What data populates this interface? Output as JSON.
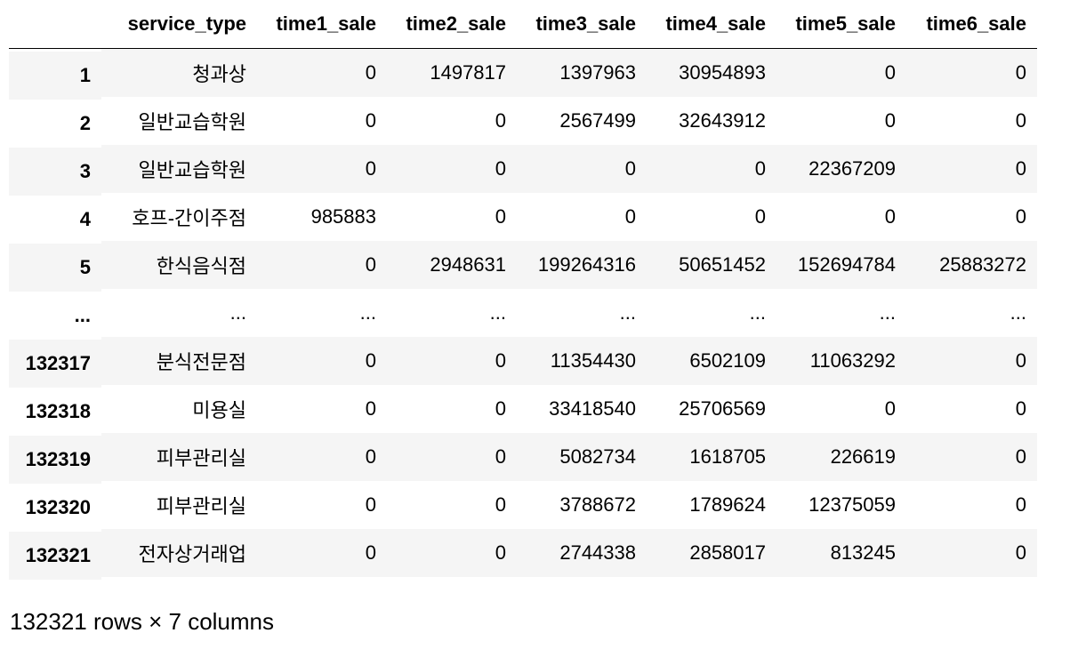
{
  "table": {
    "columns": [
      "service_type",
      "time1_sale",
      "time2_sale",
      "time3_sale",
      "time4_sale",
      "time5_sale",
      "time6_sale"
    ],
    "rows": [
      {
        "index": "1",
        "cells": [
          "청과상",
          "0",
          "1497817",
          "1397963",
          "30954893",
          "0",
          "0"
        ]
      },
      {
        "index": "2",
        "cells": [
          "일반교습학원",
          "0",
          "0",
          "2567499",
          "32643912",
          "0",
          "0"
        ]
      },
      {
        "index": "3",
        "cells": [
          "일반교습학원",
          "0",
          "0",
          "0",
          "0",
          "22367209",
          "0"
        ]
      },
      {
        "index": "4",
        "cells": [
          "호프-간이주점",
          "985883",
          "0",
          "0",
          "0",
          "0",
          "0"
        ]
      },
      {
        "index": "5",
        "cells": [
          "한식음식점",
          "0",
          "2948631",
          "199264316",
          "50651452",
          "152694784",
          "25883272"
        ]
      },
      {
        "index": "...",
        "cells": [
          "...",
          "...",
          "...",
          "...",
          "...",
          "...",
          "..."
        ]
      },
      {
        "index": "132317",
        "cells": [
          "분식전문점",
          "0",
          "0",
          "11354430",
          "6502109",
          "11063292",
          "0"
        ]
      },
      {
        "index": "132318",
        "cells": [
          "미용실",
          "0",
          "0",
          "33418540",
          "25706569",
          "0",
          "0"
        ]
      },
      {
        "index": "132319",
        "cells": [
          "피부관리실",
          "0",
          "0",
          "5082734",
          "1618705",
          "226619",
          "0"
        ]
      },
      {
        "index": "132320",
        "cells": [
          "피부관리실",
          "0",
          "0",
          "3788672",
          "1789624",
          "12375059",
          "0"
        ]
      },
      {
        "index": "132321",
        "cells": [
          "전자상거래업",
          "0",
          "0",
          "2744338",
          "2858017",
          "813245",
          "0"
        ]
      }
    ]
  },
  "summary": "132321 rows × 7 columns",
  "colors": {
    "stripe": "#f5f5f5",
    "text": "#000000",
    "background": "#ffffff"
  }
}
